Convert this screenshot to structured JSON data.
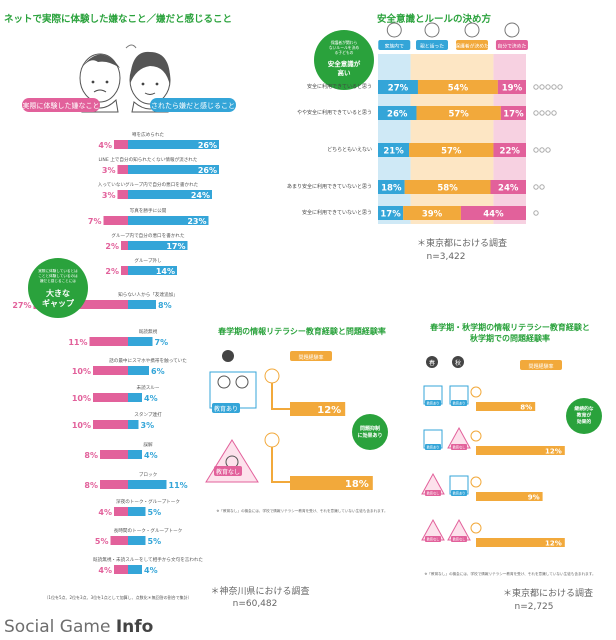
{
  "panel_left": {
    "title": "ネットで実際に体験した嫌なこと／嫌だと感じること",
    "legend_experienced": "実際に体験した嫌なこと",
    "legend_feel": "されたら嫌だと感じること",
    "bubble_text": "実際に体験しているとは\nことと体験しているのは\n嫌だと感じることには",
    "bubble_big": "大きな\nギャップ",
    "footnote": "（1位を5点、2位を3点、3位を1点として加算し、点数化＊無回答の割合で集計）",
    "source": "＊神奈川県における調査",
    "n": "n=60,482"
  },
  "panel_right_top": {
    "title": "安全意識とルールの決め方",
    "cols": [
      "家族内で",
      "親と話った",
      "保護者が決めた",
      "自分で決めた"
    ],
    "bubble_small": "保護者が関わら\nないルールを決め\nる子どもの",
    "bubble_big": "安全意識が\n高い",
    "source": "＊東京都における調査",
    "n": "n=3,422"
  },
  "panel_mid": {
    "title": "春学期の情報リテラシー教育経験と問題経験率",
    "header": "問題経験率",
    "label_yes": "教育あり",
    "label_no": "教育なし",
    "bubble": "問題抑制\nに効果あり",
    "footnote": "※「教育なし」の機会には、学校で情報リテラシー教育を受け、それを意識していない生徒も含まれます。"
  },
  "panel_right_bottom": {
    "title": "春学期・秋学期の情報リテラシー教育経験と\n秋学期での問題経験率",
    "header": "問題経験率",
    "season_spring": "春",
    "season_autumn": "秋",
    "label_yes": "教育あり",
    "label_no": "教育なし",
    "bubble": "継続的な\n教育が\n効果的",
    "footnote": "※「教育なし」の機会には、学校で情報リテラシー教育を受け、それを意識していない生徒も含まれます。",
    "source": "＊東京都における調査",
    "n": "n=2,725"
  },
  "logo": {
    "part1": "Social Game ",
    "part2": "Info"
  },
  "colors": {
    "green": "#2aa23c",
    "pink": "#e2619b",
    "blue": "#34a5d8",
    "orange": "#f2a93b",
    "light_blue": "#cfe9f6",
    "light_pink": "#f7d1e1",
    "light_orange": "#fde6c4"
  },
  "chart_data": [
    {
      "type": "bar",
      "title": "ネットで実際に体験した嫌なこと／嫌だと感じること",
      "categories": [
        "噂を広められた",
        "LINE 上で自分の知られたくない情報が流された",
        "入っていないグループ内で自分の悪口を書かれた",
        "写真を勝手に公開",
        "グループ内で自分の悪口を書かれた",
        "グループ外し",
        "知らない人から「友達追加」",
        "既読無視",
        "話の最中にスマホや携帯を触っていた",
        "未読スルー",
        "スタンプ連打",
        "誤解",
        "ブロック",
        "深夜のトーク・グループトーク",
        "長時間のトーク・グループトーク",
        "既読無視・未読スルーをして相手から文句を言われた"
      ],
      "series": [
        {
          "name": "実際に体験した嫌なこと",
          "values": [
            4,
            3,
            3,
            7,
            2,
            2,
            27,
            11,
            10,
            10,
            10,
            8,
            8,
            4,
            5,
            4
          ]
        },
        {
          "name": "されたら嫌だと感じること",
          "values": [
            26,
            26,
            24,
            23,
            17,
            14,
            8,
            7,
            6,
            4,
            3,
            4,
            11,
            5,
            5,
            4
          ]
        }
      ]
    },
    {
      "type": "bar",
      "title": "安全意識とルールの決め方",
      "categories": [
        "安全に利用できていると思う",
        "やや安全に利用できていると思う",
        "どちらともいえない",
        "あまり安全に利用できていないと思う",
        "安全に利用できていないと思う"
      ],
      "series": [
        {
          "name": "親と話った",
          "values": [
            27,
            26,
            21,
            18,
            17
          ]
        },
        {
          "name": "保護者が決めた",
          "values": [
            54,
            57,
            57,
            58,
            39
          ]
        },
        {
          "name": "自分で決めた",
          "values": [
            19,
            17,
            22,
            24,
            44
          ]
        }
      ]
    },
    {
      "type": "bar",
      "title": "春学期の情報リテラシー教育経験と問題経験率",
      "categories": [
        "教育あり",
        "教育なし"
      ],
      "series": [
        {
          "name": "問題経験率",
          "values": [
            12,
            18
          ]
        }
      ]
    },
    {
      "type": "bar",
      "title": "春学期・秋学期の情報リテラシー教育経験と\n秋学期での問題経験率",
      "categories": [
        "教育あり・教育あり",
        "教育あり・教育なし",
        "教育なし・教育あり",
        "教育なし・教育なし"
      ],
      "series": [
        {
          "name": "問題経験率",
          "values": [
            8,
            12,
            9,
            12
          ]
        }
      ]
    }
  ]
}
